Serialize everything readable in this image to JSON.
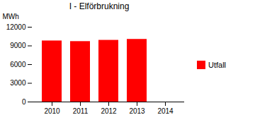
{
  "chart_data": {
    "type": "bar",
    "title": "I - Elförbrukning",
    "ylabel": "MWh",
    "categories": [
      "2010",
      "2011",
      "2012",
      "2013",
      "2014"
    ],
    "series": [
      {
        "name": "Utfall",
        "color": "#ff0000",
        "values": [
          9800,
          9700,
          9900,
          10050,
          null
        ]
      }
    ],
    "ylim": [
      0,
      12000
    ],
    "yticks": [
      0,
      3000,
      6000,
      9000,
      12000
    ],
    "legend": "right"
  }
}
